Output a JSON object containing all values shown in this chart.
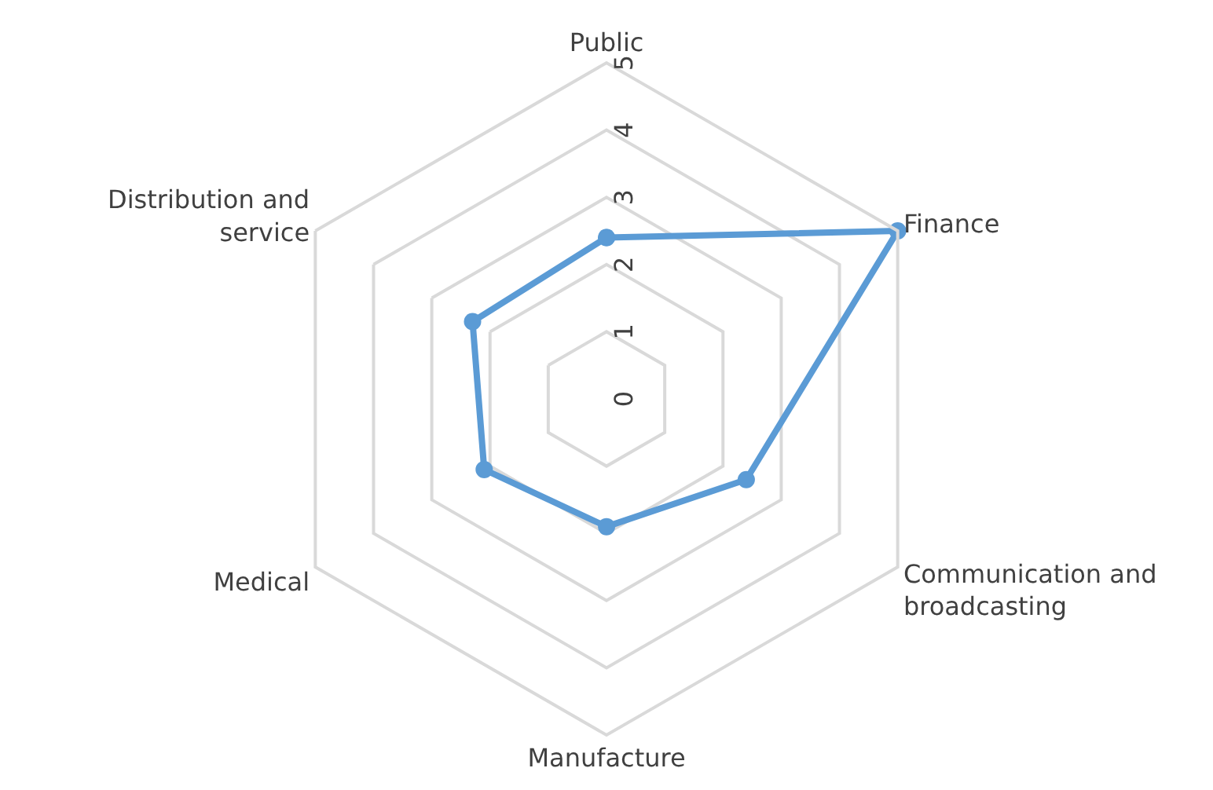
{
  "chart_data": {
    "type": "radar",
    "categories": [
      "Public",
      "Finance",
      "Communication and broadcasting",
      "Manufacture",
      "Medical",
      "Distribution and service"
    ],
    "series": [
      {
        "color": "#5b9bd5",
        "values": [
          2.4,
          5,
          2.4,
          1.9,
          2.1,
          2.3
        ]
      }
    ],
    "ylim": [
      0,
      5
    ],
    "yticks": [
      0,
      1,
      2,
      3,
      4,
      5
    ],
    "grid": true,
    "marker": "circle",
    "line_style": "solid"
  }
}
